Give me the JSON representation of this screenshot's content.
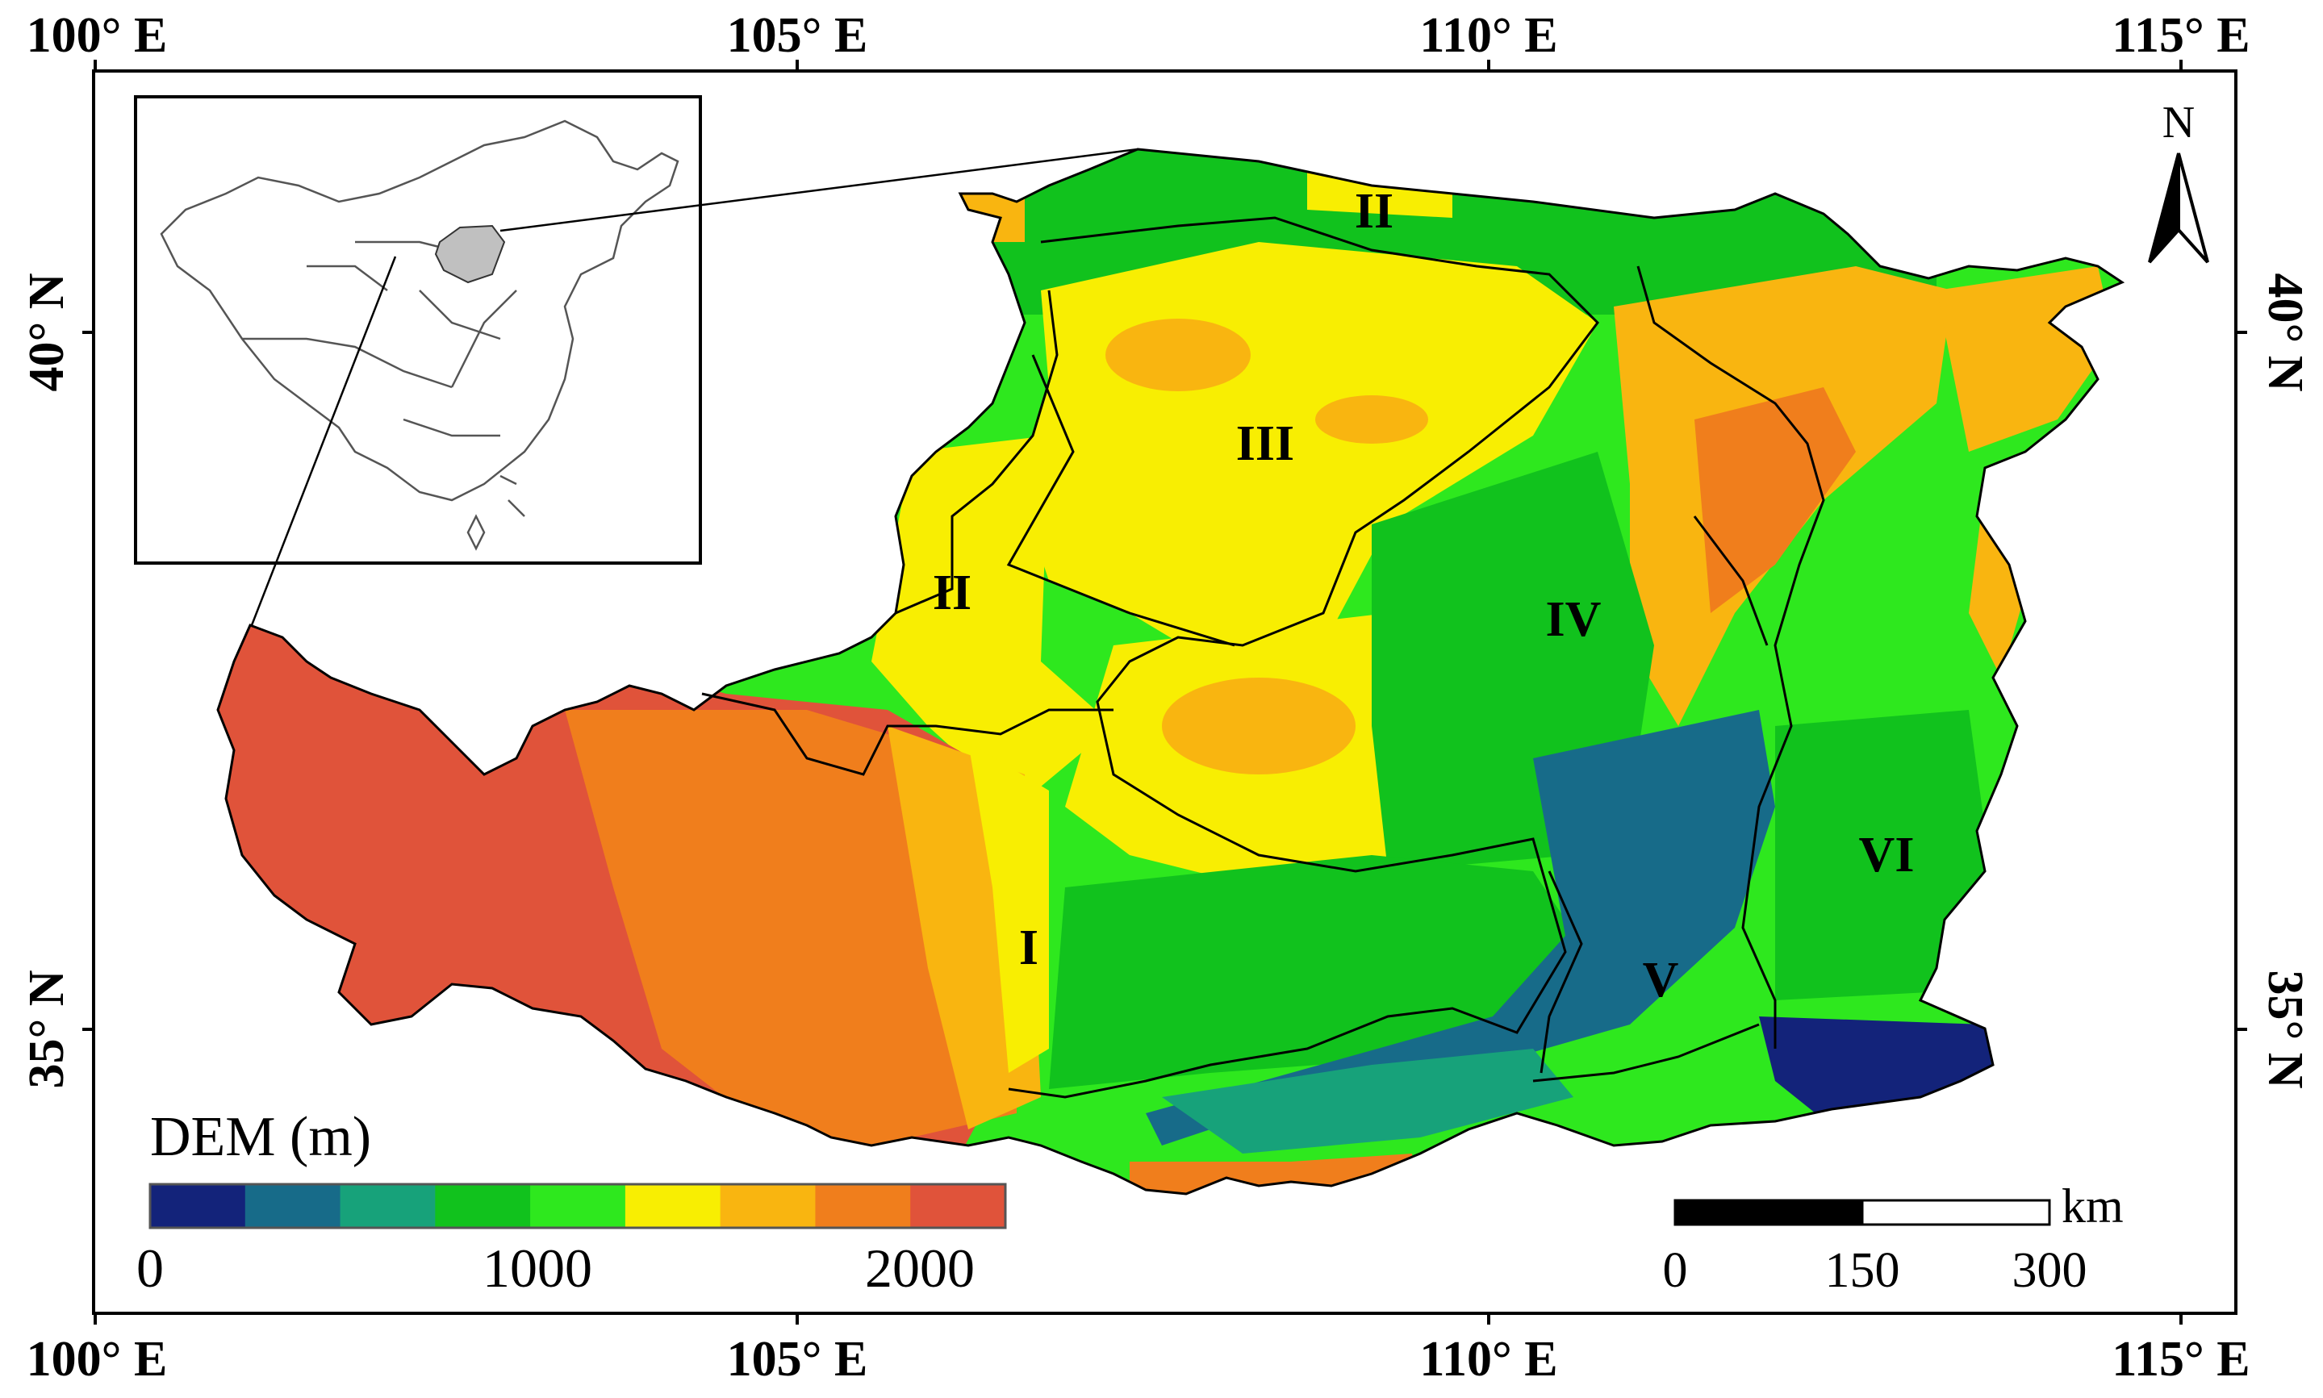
{
  "axes": {
    "longitude_labels": [
      "100° E",
      "105° E",
      "110° E",
      "115° E"
    ],
    "latitude_labels": [
      "40° N",
      "35° N"
    ]
  },
  "north_arrow": {
    "label": "N",
    "icon": "north-arrow-icon"
  },
  "regions": [
    "I",
    "II",
    "II",
    "III",
    "IV",
    "V",
    "VI"
  ],
  "legend": {
    "title": "DEM (m)",
    "colors": [
      "#13237a",
      "#176b89",
      "#17a27a",
      "#11c21d",
      "#2ee81e",
      "#f8ee02",
      "#f9b510",
      "#f07e1c",
      "#e0533a"
    ],
    "tick_labels": [
      "0",
      "1000",
      "2000"
    ]
  },
  "scale_bar": {
    "unit": "km",
    "tick_labels": [
      "0",
      "150",
      "300"
    ]
  },
  "inset": {
    "content": "china-outline-with-highlighted-study-area"
  },
  "colors": {
    "frame": "#000000",
    "highlight": "#c0c0c0"
  }
}
